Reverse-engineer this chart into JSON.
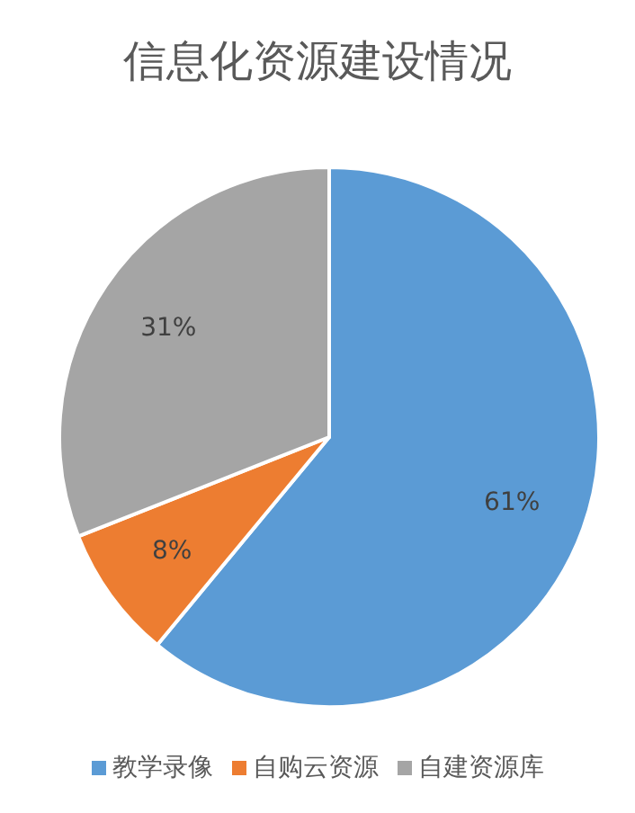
{
  "chart_data": {
    "type": "pie",
    "title": "信息化资源建设情况",
    "categories": [
      "教学录像",
      "自购云资源",
      "自建资源库"
    ],
    "values": [
      61,
      8,
      31
    ],
    "value_labels": [
      "61%",
      "8%",
      "31%"
    ],
    "colors": [
      "#5b9bd5",
      "#ed7d31",
      "#a5a5a5"
    ],
    "legend": "bottom"
  }
}
